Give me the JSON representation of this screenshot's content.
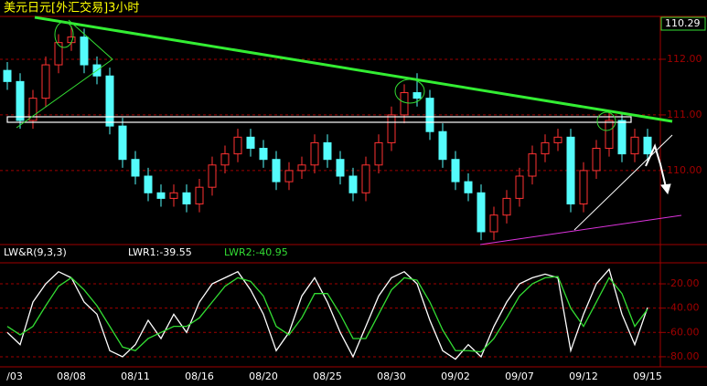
{
  "chart_data": [
    {
      "type": "candlestick",
      "title": "美元日元[外汇交易]3小时",
      "last_price_label": "110.29",
      "up_color": "#ff3232",
      "down_color": "#54fcfc",
      "categories": [
        "/03",
        null,
        null,
        null,
        null,
        "08/08",
        null,
        null,
        null,
        null,
        "08/11",
        null,
        null,
        null,
        null,
        "08/16",
        null,
        null,
        null,
        null,
        "08/20",
        null,
        null,
        null,
        null,
        "08/25",
        null,
        null,
        null,
        null,
        "08/30",
        null,
        null,
        null,
        null,
        "09/02",
        null,
        null,
        null,
        null,
        "09/07",
        null,
        null,
        null,
        null,
        "09/12",
        null,
        null,
        null,
        null,
        "09/15"
      ],
      "open": [
        111.8,
        111.6,
        110.9,
        111.3,
        111.9,
        112.3,
        112.4,
        111.9,
        111.7,
        110.8,
        110.2,
        109.9,
        109.6,
        109.5,
        109.6,
        109.4,
        109.7,
        110.1,
        110.3,
        110.6,
        110.4,
        110.2,
        109.8,
        110.0,
        110.1,
        110.5,
        110.2,
        109.9,
        109.6,
        110.1,
        110.5,
        111.0,
        111.4,
        111.3,
        110.7,
        110.2,
        109.8,
        109.6,
        108.9,
        109.2,
        109.5,
        109.9,
        110.3,
        110.5,
        110.6,
        109.4,
        110.0,
        110.4,
        110.9,
        110.3,
        110.6
      ],
      "high": [
        111.95,
        111.75,
        111.45,
        112.05,
        112.45,
        112.6,
        112.55,
        112.05,
        111.85,
        110.95,
        110.35,
        110.05,
        109.75,
        109.75,
        109.75,
        109.85,
        110.25,
        110.45,
        110.75,
        110.75,
        110.55,
        110.35,
        110.15,
        110.25,
        110.65,
        110.65,
        110.35,
        110.05,
        110.25,
        110.65,
        111.15,
        111.55,
        111.75,
        111.45,
        110.85,
        110.35,
        109.95,
        109.75,
        109.35,
        109.65,
        110.05,
        110.45,
        110.65,
        110.75,
        110.75,
        110.15,
        110.55,
        111.05,
        111.05,
        110.75,
        110.75
      ],
      "low": [
        111.45,
        110.75,
        110.75,
        111.15,
        111.75,
        112.15,
        111.75,
        111.55,
        110.65,
        110.05,
        109.75,
        109.45,
        109.35,
        109.35,
        109.25,
        109.25,
        109.55,
        109.95,
        110.15,
        110.25,
        110.05,
        109.65,
        109.65,
        109.85,
        109.95,
        110.05,
        109.75,
        109.45,
        109.45,
        109.95,
        110.35,
        110.85,
        111.15,
        110.55,
        110.05,
        109.65,
        109.45,
        108.75,
        108.75,
        109.05,
        109.35,
        109.75,
        110.15,
        110.35,
        109.25,
        109.25,
        109.85,
        110.25,
        110.15,
        110.15,
        110.15
      ],
      "close": [
        111.6,
        110.9,
        111.3,
        111.9,
        112.3,
        112.4,
        111.9,
        111.7,
        110.8,
        110.2,
        109.9,
        109.6,
        109.5,
        109.6,
        109.4,
        109.7,
        110.1,
        110.3,
        110.6,
        110.4,
        110.2,
        109.8,
        110.0,
        110.1,
        110.5,
        110.2,
        109.9,
        109.6,
        110.1,
        110.5,
        111.0,
        111.4,
        111.3,
        110.7,
        110.2,
        109.8,
        109.6,
        108.9,
        109.2,
        109.5,
        109.9,
        110.3,
        110.5,
        110.6,
        109.4,
        110.0,
        110.4,
        110.9,
        110.3,
        110.6,
        110.3
      ],
      "ylim": [
        108.67,
        112.77
      ],
      "yticks": [
        {
          "value": 110,
          "label": "110.00"
        },
        {
          "value": 111,
          "label": "111.00"
        },
        {
          "value": 112,
          "label": "112.00"
        }
      ],
      "grid": true
    },
    {
      "type": "line",
      "title": "LW&R(9,3,3)",
      "series": [
        {
          "name": "LWR1",
          "legend_label": "LWR1:-39.55",
          "color": "#ffffff",
          "values": [
            -60,
            -70,
            -35,
            -20,
            -10,
            -15,
            -35,
            -45,
            -75,
            -80,
            -70,
            -50,
            -65,
            -45,
            -60,
            -35,
            -20,
            -15,
            -10,
            -25,
            -45,
            -75,
            -60,
            -30,
            -15,
            -35,
            -60,
            -80,
            -55,
            -30,
            -15,
            -10,
            -20,
            -50,
            -75,
            -82,
            -70,
            -80,
            -55,
            -35,
            -20,
            -15,
            -12,
            -15,
            -75,
            -45,
            -20,
            -8,
            -45,
            -70,
            -39.55
          ]
        },
        {
          "name": "LWR2",
          "legend_label": "LWR2:-40.95",
          "color": "#33dd33",
          "values": [
            -55,
            -62,
            -55,
            -38,
            -22,
            -15,
            -25,
            -38,
            -55,
            -72,
            -75,
            -65,
            -60,
            -55,
            -55,
            -48,
            -35,
            -22,
            -15,
            -18,
            -30,
            -55,
            -62,
            -48,
            -28,
            -28,
            -45,
            -65,
            -65,
            -45,
            -25,
            -15,
            -17,
            -35,
            -58,
            -75,
            -75,
            -76,
            -65,
            -48,
            -30,
            -20,
            -15,
            -14,
            -40,
            -55,
            -35,
            -15,
            -28,
            -55,
            -40.95
          ]
        }
      ],
      "ylim": [
        -86.8,
        -4.2
      ],
      "yticks": [
        {
          "value": -20,
          "label": "-20.00"
        },
        {
          "value": -40,
          "label": "-40.00"
        },
        {
          "value": -60,
          "label": "-60.00"
        },
        {
          "value": -80,
          "label": "-80.00"
        }
      ],
      "grid": true
    }
  ]
}
